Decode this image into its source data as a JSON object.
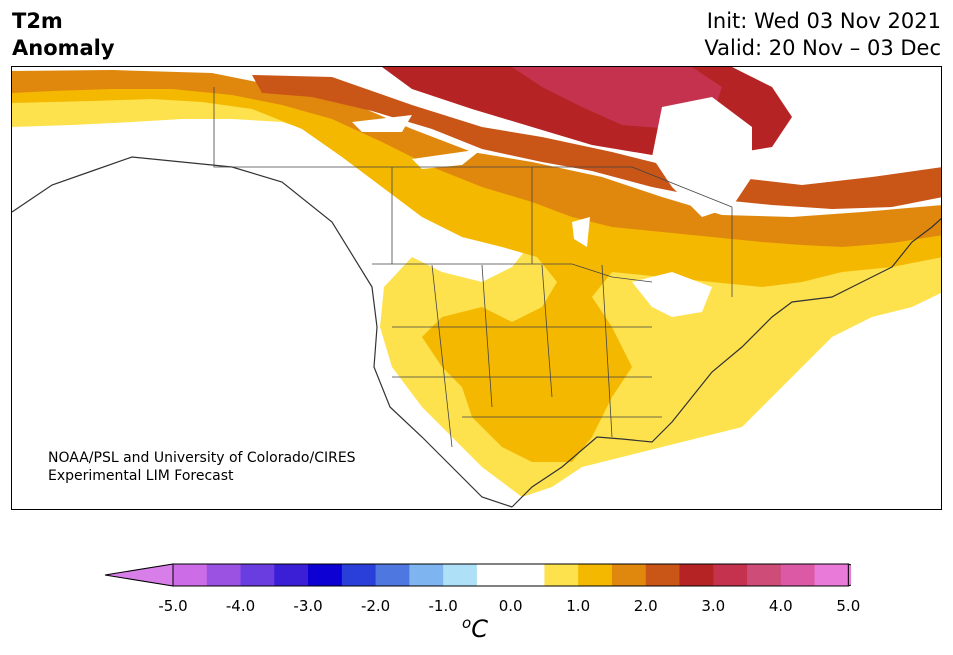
{
  "header": {
    "title_line1": "T2m",
    "title_line2": "Anomaly",
    "init_label": "Init: Wed 03 Nov 2021",
    "valid_label": "Valid: 20 Nov – 03 Dec"
  },
  "map": {
    "credit_line1": "NOAA/PSL and University of Colorado/CIRES",
    "credit_line2": "Experimental LIM Forecast",
    "anomaly_colors": {
      "plus_0_5": "#fde24e",
      "plus_1_0": "#f4b800",
      "plus_1_5": "#e0880e",
      "plus_2_0": "#c95517",
      "plus_2_5": "#b52325",
      "plus_3_0": "#c4324e"
    }
  },
  "colorbar": {
    "unit_base": "C",
    "unit_sup": "o",
    "tick_labels": [
      "-5.0",
      "-4.0",
      "-3.0",
      "-2.0",
      "-1.0",
      "0.0",
      "1.0",
      "2.0",
      "3.0",
      "4.0",
      "5.0"
    ],
    "colors": [
      "#cd6ce7",
      "#9b52e3",
      "#6a3de0",
      "#3a1fd6",
      "#0c00d2",
      "#2a3fd9",
      "#4f77e0",
      "#7eb4ef",
      "#aee0f8",
      "#ffffff",
      "#ffffff",
      "#fde24e",
      "#f4b800",
      "#e0880e",
      "#c95517",
      "#b52325",
      "#c4324e",
      "#cd4d78",
      "#dc5aa5",
      "#e97ad9"
    ],
    "extend_low": "#d77ee8",
    "extend_high": "#e97ad9"
  }
}
